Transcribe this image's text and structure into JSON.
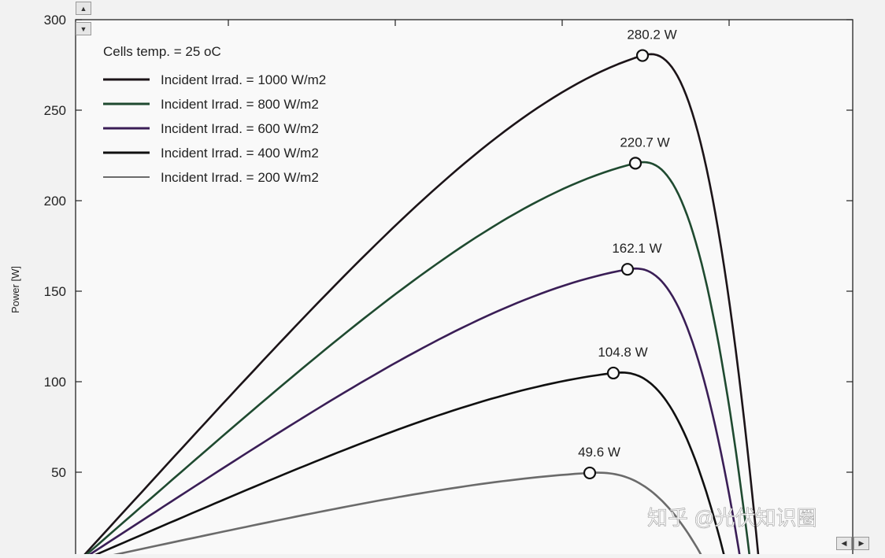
{
  "chart_data": {
    "type": "line",
    "title": "",
    "xlabel": "",
    "ylabel": "Power [W]",
    "ylim": [
      0,
      300
    ],
    "yticks": [
      "0",
      "50",
      "100",
      "150",
      "200",
      "250",
      "300"
    ],
    "grid": false,
    "legend_position": "top-left",
    "annotation": "Cells temp.  = 25 oC",
    "series": [
      {
        "name": "Incident Irrad. = 1000 W/m2",
        "color": "#1c1418",
        "peak_value": 280.2,
        "peak_label": "280.2 W"
      },
      {
        "name": "Incident Irrad. = 800 W/m2",
        "color": "#1f4a30",
        "peak_value": 220.7,
        "peak_label": "220.7 W"
      },
      {
        "name": "Incident Irrad. = 600 W/m2",
        "color": "#3a1e56",
        "peak_value": 162.1,
        "peak_label": "162.1 W"
      },
      {
        "name": "Incident Irrad. = 400 W/m2",
        "color": "#101010",
        "peak_value": 104.8,
        "peak_label": "104.8 W"
      },
      {
        "name": "Incident Irrad. = 200 W/m2",
        "color": "#6b6b6b",
        "peak_value": 49.6,
        "peak_label": "49.6 W"
      }
    ]
  },
  "watermark": "知乎 @光伏知识圈",
  "scroll_icons": {
    "up": "▲",
    "down": "▼",
    "left": "◀",
    "right": "▶"
  }
}
